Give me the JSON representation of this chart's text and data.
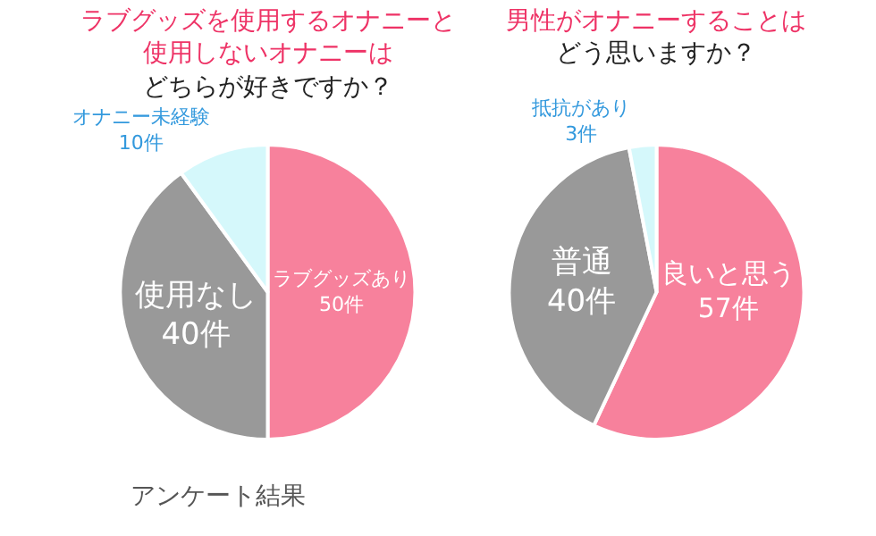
{
  "chart_data": [
    {
      "type": "pie",
      "title": "ラブグッズを使用するオナニーと使用しないオナニーは",
      "subtitle": "どちらが好きですか？",
      "categories": [
        "ラブグッズあり",
        "使用なし",
        "オナニー未経験"
      ],
      "values": [
        50,
        40,
        10
      ],
      "colors": [
        "#f7819c",
        "#999999",
        "#d5f8fb"
      ],
      "value_labels": [
        "50件",
        "40件",
        "10件"
      ],
      "annotations": [
        "アンケート結果"
      ],
      "legend": false
    },
    {
      "type": "pie",
      "title": "男性がオナニーすることは",
      "subtitle": "どう思いますか？",
      "categories": [
        "良いと思う",
        "普通",
        "抵抗があり"
      ],
      "values": [
        57,
        40,
        3
      ],
      "colors": [
        "#f7819c",
        "#999999",
        "#d5f8fb"
      ],
      "value_labels": [
        "57件",
        "40件",
        "3件"
      ],
      "legend": false
    }
  ]
}
